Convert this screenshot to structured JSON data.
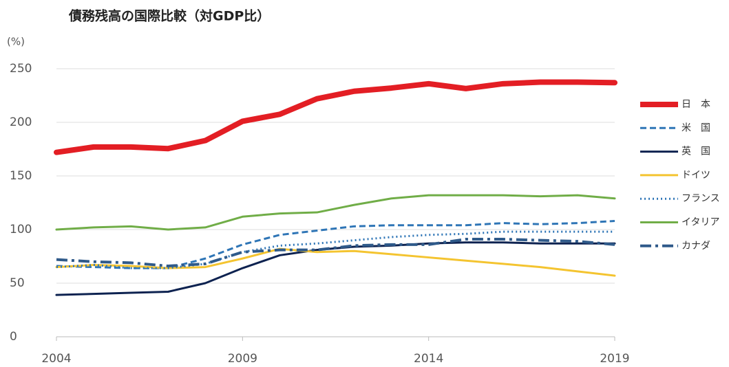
{
  "chart_data": {
    "type": "line",
    "title": "債務残高の国際比較（対GDP比）",
    "y_unit": "(%)",
    "x": [
      2004,
      2005,
      2006,
      2007,
      2008,
      2009,
      2010,
      2011,
      2012,
      2013,
      2014,
      2015,
      2016,
      2017,
      2018,
      2019
    ],
    "xlim": [
      2004,
      2019
    ],
    "xticks": [
      2004,
      2009,
      2014,
      2019
    ],
    "ylim": [
      0,
      250
    ],
    "yticks": [
      0,
      50,
      100,
      150,
      200,
      250
    ],
    "grid": true,
    "legend": "right",
    "series": [
      {
        "name": "日　本",
        "color": "#e31e24",
        "style": "solid",
        "values": [
          172,
          177,
          177,
          175.5,
          183,
          201,
          207.5,
          222,
          229,
          232,
          236,
          231.5,
          236,
          237.5,
          237.5,
          237
        ]
      },
      {
        "name": "米　国",
        "color": "#2e75b6",
        "style": "dashed",
        "values": [
          66,
          65,
          64,
          64,
          73,
          86,
          95,
          99,
          103,
          104,
          104,
          104,
          106,
          105,
          106,
          108
        ]
      },
      {
        "name": "英　国",
        "color": "#0d2250",
        "style": "solid",
        "values": [
          39,
          40,
          41,
          42,
          50,
          64,
          76,
          81,
          84,
          85,
          87,
          88,
          88,
          87,
          87,
          87
        ]
      },
      {
        "name": "ドイツ",
        "color": "#f4c430",
        "style": "solid",
        "values": [
          65,
          67,
          66,
          64,
          65,
          73,
          82,
          79,
          80,
          77,
          74,
          71,
          68,
          65,
          61,
          57
        ]
      },
      {
        "name": "フランス",
        "color": "#2e75b6",
        "style": "dotted",
        "values": [
          65,
          67,
          64,
          64,
          68,
          79,
          85,
          87,
          90,
          93,
          95,
          96,
          98,
          98,
          98,
          98
        ]
      },
      {
        "name": "イタリア",
        "color": "#70ad47",
        "style": "solid",
        "values": [
          100,
          102,
          103,
          100,
          102,
          112,
          115,
          116,
          123,
          129,
          132,
          132,
          132,
          131,
          132,
          129
        ]
      },
      {
        "name": "カナダ",
        "color": "#2f5a8a",
        "style": "dashdot",
        "values": [
          72,
          70,
          69,
          66,
          68,
          79,
          81,
          81,
          85,
          86,
          86,
          91,
          91,
          90,
          89,
          86
        ]
      }
    ]
  }
}
